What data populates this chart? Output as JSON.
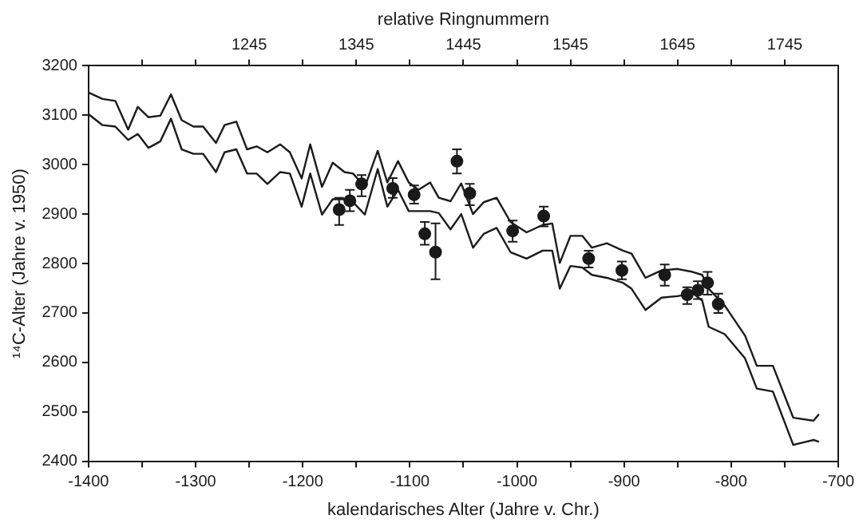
{
  "chart_data": {
    "type": "line",
    "xlabel": "kalendarisches Alter (Jahre v. Chr.)",
    "ylabel": "¹⁴C-Alter (Jahre v. 1950)",
    "x2label": "relative Ringnummern",
    "xlim": [
      -1400,
      -700
    ],
    "xticks": [
      -1400,
      {
        "value": -1350,
        "label": null
      },
      -1300,
      {
        "value": -1250,
        "label": null
      },
      -1200,
      {
        "value": -1150,
        "label": null
      },
      -1100,
      {
        "value": -1050,
        "label": null
      },
      -1000,
      {
        "value": -950,
        "label": null
      },
      -900,
      {
        "value": -850,
        "label": null
      },
      -800,
      {
        "value": -750,
        "label": null
      },
      -700
    ],
    "x2lim": [
      1095,
      1795
    ],
    "x2ticks": [
      {
        "value": 1145,
        "label": null
      },
      {
        "value": 1195,
        "label": null
      },
      1245,
      {
        "value": 1295,
        "label": null
      },
      1345,
      {
        "value": 1395,
        "label": null
      },
      1445,
      {
        "value": 1495,
        "label": null
      },
      1545,
      {
        "value": 1595,
        "label": null
      },
      1645,
      {
        "value": 1695,
        "label": null
      },
      1745
    ],
    "ylim": [
      2400,
      3200
    ],
    "yticks": [
      2400,
      2500,
      2600,
      2700,
      2800,
      2900,
      3000,
      3100,
      3200
    ],
    "series": [
      {
        "type": "line",
        "color": "#1a1a1a",
        "x": [
          -1400,
          -1387,
          -1375,
          -1363,
          -1354,
          -1344,
          -1333,
          -1323,
          -1313,
          -1302,
          -1293,
          -1281,
          -1273,
          -1262,
          -1252,
          -1243,
          -1233,
          -1221,
          -1212,
          -1201,
          -1193,
          -1182,
          -1172,
          -1161,
          -1153,
          -1142,
          -1130,
          -1121,
          -1111,
          -1101,
          -1092,
          -1081,
          -1073,
          -1062,
          -1052,
          -1041,
          -1031,
          -1019,
          -1006,
          -991,
          -976,
          -967,
          -960,
          -950,
          -939,
          -930,
          -916,
          -901,
          -893,
          -880,
          -865,
          -850,
          -836,
          -827,
          -821,
          -806,
          -787,
          -776,
          -761,
          -742,
          -723,
          -718
        ],
        "values": [
          3146,
          3133,
          3129,
          3071,
          3117,
          3096,
          3099,
          3142,
          3090,
          3077,
          3077,
          3044,
          3080,
          3087,
          3031,
          3037,
          3025,
          3041,
          3025,
          2972,
          3041,
          2955,
          3004,
          2985,
          2982,
          2955,
          3028,
          2964,
          3007,
          2964,
          2949,
          2964,
          2933,
          2926,
          2962,
          2900,
          2924,
          2933,
          2884,
          2863,
          2878,
          2881,
          2801,
          2856,
          2856,
          2832,
          2841,
          2826,
          2820,
          2771,
          2786,
          2789,
          2783,
          2777,
          2749,
          2715,
          2654,
          2593,
          2593,
          2488,
          2482,
          2495
        ]
      },
      {
        "type": "line",
        "color": "#1a1a1a",
        "x": [
          -1400,
          -1387,
          -1375,
          -1363,
          -1354,
          -1344,
          -1333,
          -1323,
          -1313,
          -1302,
          -1293,
          -1281,
          -1273,
          -1262,
          -1252,
          -1243,
          -1233,
          -1221,
          -1212,
          -1201,
          -1193,
          -1182,
          -1172,
          -1161,
          -1153,
          -1142,
          -1130,
          -1121,
          -1111,
          -1101,
          -1092,
          -1081,
          -1073,
          -1062,
          -1052,
          -1041,
          -1031,
          -1019,
          -1006,
          -991,
          -976,
          -967,
          -960,
          -950,
          -939,
          -930,
          -916,
          -901,
          -893,
          -880,
          -865,
          -850,
          -836,
          -827,
          -821,
          -806,
          -787,
          -776,
          -761,
          -742,
          -723,
          -718
        ],
        "values": [
          3102,
          3080,
          3077,
          3050,
          3062,
          3034,
          3047,
          3093,
          3031,
          3022,
          3022,
          2985,
          3025,
          3031,
          2982,
          2982,
          2961,
          2985,
          2982,
          2915,
          2982,
          2899,
          2930,
          2930,
          2924,
          2899,
          2991,
          2915,
          2949,
          2906,
          2906,
          2906,
          2902,
          2869,
          2900,
          2832,
          2860,
          2872,
          2823,
          2810,
          2826,
          2826,
          2749,
          2795,
          2792,
          2777,
          2771,
          2761,
          2749,
          2706,
          2731,
          2734,
          2740,
          2725,
          2672,
          2657,
          2608,
          2547,
          2541,
          2433,
          2443,
          2439
        ]
      },
      {
        "type": "scatter",
        "color": "#1a1a1a",
        "marker": "circle",
        "x": [
          -1166,
          -1156,
          -1145,
          -1116,
          -1096,
          -1086,
          -1076,
          -1056,
          -1044,
          -1004,
          -975,
          -933,
          -902,
          -862,
          -841,
          -831,
          -822,
          -812
        ],
        "values": [
          2909,
          2927,
          2961,
          2952,
          2939,
          2860,
          2823,
          3007,
          2942,
          2866,
          2896,
          2810,
          2786,
          2777,
          2737,
          2746,
          2761,
          2718
        ],
        "errors": [
          [
            2878,
            2933
          ],
          [
            2906,
            2949
          ],
          [
            2936,
            2979
          ],
          [
            2933,
            2973
          ],
          [
            2921,
            2958
          ],
          [
            2838,
            2884
          ],
          [
            2768,
            2881
          ],
          [
            2982,
            3031
          ],
          [
            2918,
            2961
          ],
          [
            2844,
            2887
          ],
          [
            2875,
            2915
          ],
          [
            2792,
            2826
          ],
          [
            2768,
            2804
          ],
          [
            2755,
            2798
          ],
          [
            2718,
            2752
          ],
          [
            2728,
            2764
          ],
          [
            2737,
            2783
          ],
          [
            2700,
            2739
          ]
        ]
      }
    ]
  }
}
